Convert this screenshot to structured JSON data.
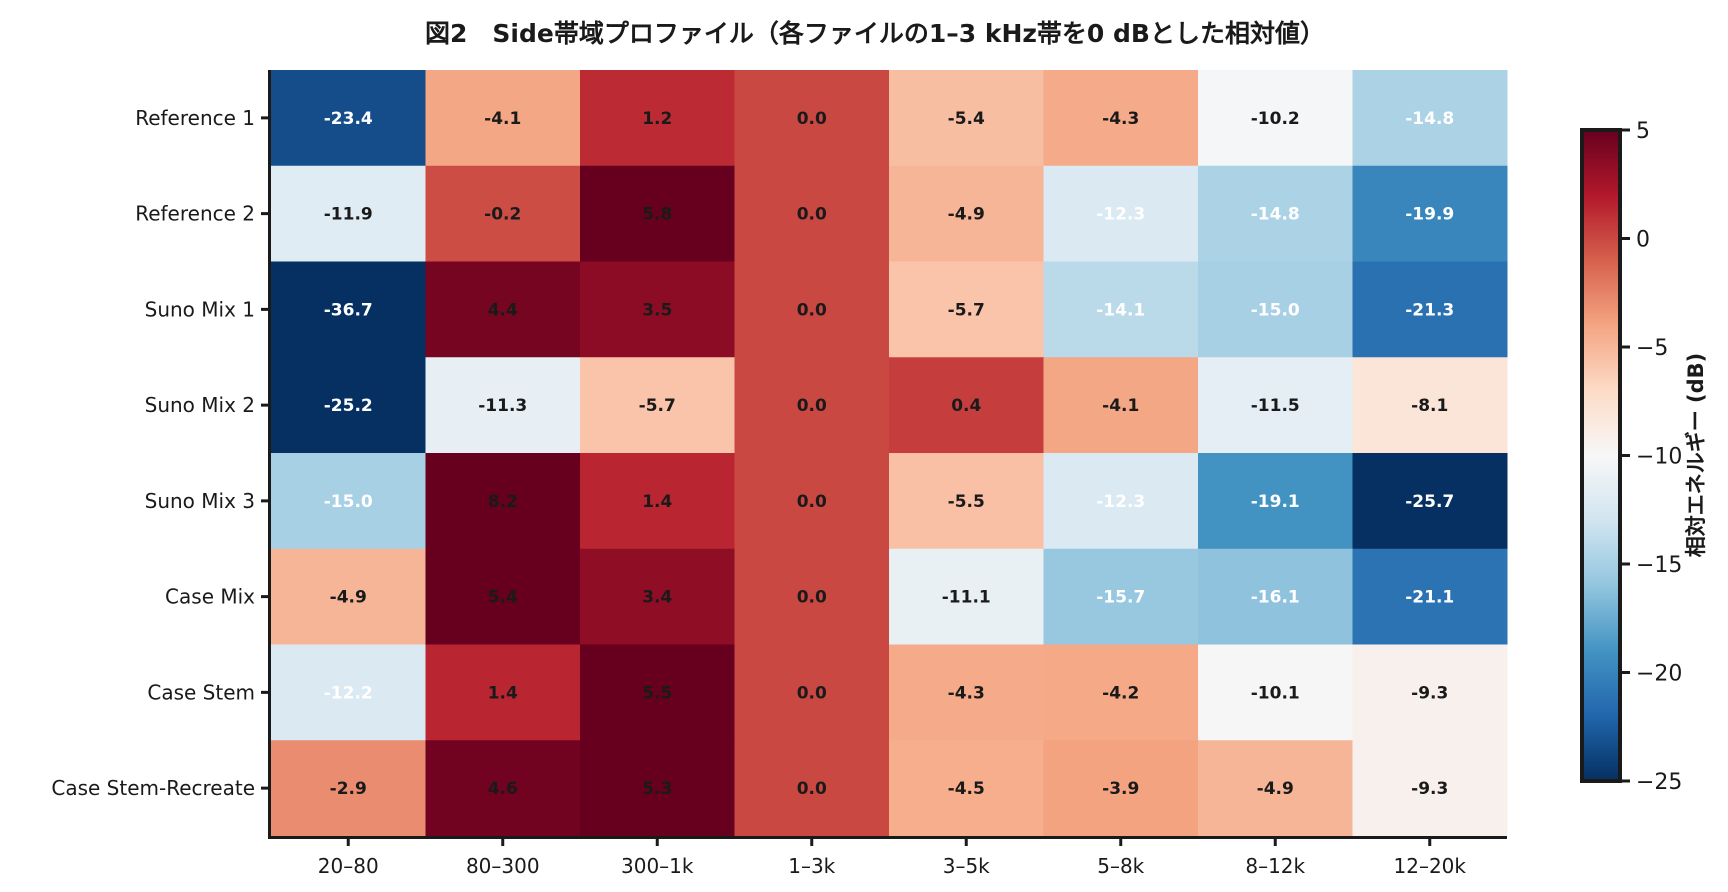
{
  "chart_data": {
    "type": "heatmap",
    "title": "図2　Side帯域プロファイル（各ファイルの1–3 kHz帯を0 dBとした相対値）",
    "xlabel": "",
    "ylabel": "",
    "x_categories": [
      "20–80",
      "80–300",
      "300–1k",
      "1–3k",
      "3–5k",
      "5–8k",
      "8–12k",
      "12–20k"
    ],
    "y_categories": [
      "Reference 1",
      "Reference 2",
      "Suno Mix 1",
      "Suno Mix 2",
      "Suno Mix 3",
      "Case Mix",
      "Case Stem",
      "Case Stem-Recreate"
    ],
    "values": [
      [
        -23.4,
        -4.1,
        1.2,
        0.0,
        -5.4,
        -4.3,
        -10.2,
        -14.8
      ],
      [
        -11.9,
        -0.2,
        5.8,
        0.0,
        -4.9,
        -12.3,
        -14.8,
        -19.9
      ],
      [
        -36.7,
        4.4,
        3.5,
        0.0,
        -5.7,
        -14.1,
        -15.0,
        -21.3
      ],
      [
        -25.2,
        -11.3,
        -5.7,
        0.0,
        0.4,
        -4.1,
        -11.5,
        -8.1
      ],
      [
        -15.0,
        8.2,
        1.4,
        0.0,
        -5.5,
        -12.3,
        -19.1,
        -25.7
      ],
      [
        -4.9,
        5.4,
        3.4,
        0.0,
        -11.1,
        -15.7,
        -16.1,
        -21.1
      ],
      [
        -12.2,
        1.4,
        5.5,
        0.0,
        -4.3,
        -4.2,
        -10.1,
        -9.3
      ],
      [
        -2.9,
        4.6,
        5.3,
        0.0,
        -4.5,
        -3.9,
        -4.9,
        -9.3
      ]
    ],
    "colormap": "RdBu_r",
    "colormap_stops": [
      "#053061",
      "#2166ac",
      "#4393c3",
      "#92c5de",
      "#d1e5f0",
      "#f7f7f7",
      "#fddbc7",
      "#f4a582",
      "#d6604d",
      "#b2182b",
      "#67001f"
    ],
    "vmin": -25,
    "vmax": 5,
    "annotation_format": "0.0",
    "colorbar": {
      "label": "相対エネルギー (dB)",
      "ticks": [
        5,
        0,
        -5,
        -10,
        -15,
        -20,
        -25
      ],
      "tick_labels": [
        "5",
        "0",
        "−5",
        "−10",
        "−15",
        "−20",
        "−25"
      ],
      "placement": "right"
    }
  }
}
